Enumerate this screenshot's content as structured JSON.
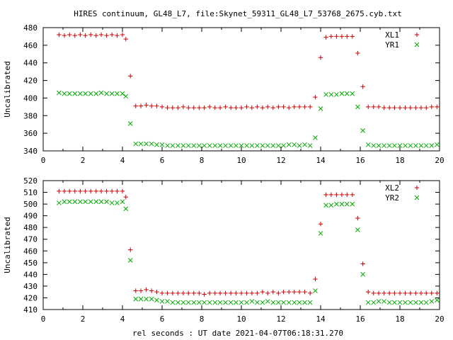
{
  "figure": {
    "title": "HIRES continuum, GL48_L7, file:Skynet_59311_GL48_L7_53768_2675.cyb.txt",
    "xlabel": "rel seconds : UT date 2021-04-07T06:18:31.270"
  },
  "colors": {
    "plus": "#cc0000",
    "cross": "#00aa00",
    "axis": "#000000"
  },
  "chart_data": [
    {
      "type": "scatter",
      "ylabel": "Uncalibrated",
      "xlim": [
        0,
        20
      ],
      "ylim": [
        340,
        480
      ],
      "xticks": [
        0,
        2,
        4,
        6,
        8,
        10,
        12,
        14,
        16,
        18,
        20
      ],
      "yticks": [
        340,
        360,
        380,
        400,
        420,
        440,
        460,
        480
      ],
      "legend_position": "top-right",
      "x": [
        0.8,
        1.07,
        1.33,
        1.6,
        1.87,
        2.13,
        2.4,
        2.67,
        2.93,
        3.2,
        3.47,
        3.73,
        4.0,
        4.17,
        4.4,
        4.67,
        4.93,
        5.2,
        5.47,
        5.73,
        6.0,
        6.27,
        6.53,
        6.8,
        7.07,
        7.33,
        7.6,
        7.87,
        8.13,
        8.4,
        8.67,
        8.93,
        9.2,
        9.47,
        9.73,
        10.0,
        10.27,
        10.53,
        10.8,
        11.07,
        11.33,
        11.6,
        11.87,
        12.13,
        12.4,
        12.67,
        12.93,
        13.2,
        13.47,
        13.73,
        14.0,
        14.27,
        14.53,
        14.8,
        15.07,
        15.33,
        15.6,
        15.87,
        16.13,
        16.4,
        16.67,
        16.93,
        17.2,
        17.47,
        17.73,
        18.0,
        18.27,
        18.53,
        18.8,
        19.07,
        19.33,
        19.6,
        19.87
      ],
      "series": [
        {
          "name": "XL1",
          "marker": "plus",
          "values": [
            472,
            471,
            472,
            471,
            472,
            471,
            472,
            471,
            472,
            471,
            472,
            471,
            472,
            467,
            425,
            391,
            391,
            392,
            391,
            391,
            390,
            389,
            389,
            389,
            390,
            389,
            389,
            389,
            389,
            390,
            389,
            389,
            390,
            389,
            389,
            389,
            390,
            389,
            390,
            389,
            390,
            389,
            390,
            390,
            389,
            390,
            390,
            390,
            390,
            401,
            446,
            469,
            470,
            470,
            470,
            470,
            470,
            451,
            413,
            390,
            390,
            390,
            389,
            389,
            389,
            389,
            389,
            389,
            389,
            389,
            389,
            390,
            390
          ]
        },
        {
          "name": "YR1",
          "marker": "cross",
          "values": [
            406,
            405,
            405,
            405,
            405,
            405,
            405,
            405,
            406,
            405,
            405,
            405,
            405,
            402,
            371,
            348,
            348,
            348,
            348,
            347,
            347,
            346,
            346,
            346,
            346,
            346,
            346,
            346,
            346,
            346,
            346,
            346,
            346,
            346,
            346,
            346,
            346,
            346,
            346,
            346,
            346,
            346,
            346,
            346,
            347,
            347,
            346,
            347,
            346,
            355,
            388,
            404,
            404,
            404,
            405,
            405,
            405,
            390,
            363,
            347,
            346,
            346,
            346,
            346,
            346,
            346,
            346,
            346,
            346,
            346,
            346,
            346,
            347
          ]
        }
      ]
    },
    {
      "type": "scatter",
      "ylabel": "Uncalibrated",
      "xlim": [
        0,
        20
      ],
      "ylim": [
        410,
        520
      ],
      "xticks": [
        0,
        2,
        4,
        6,
        8,
        10,
        12,
        14,
        16,
        18,
        20
      ],
      "yticks": [
        410,
        420,
        430,
        440,
        450,
        460,
        470,
        480,
        490,
        500,
        510,
        520
      ],
      "legend_position": "top-right",
      "x": [
        0.8,
        1.07,
        1.33,
        1.6,
        1.87,
        2.13,
        2.4,
        2.67,
        2.93,
        3.2,
        3.47,
        3.73,
        4.0,
        4.17,
        4.4,
        4.67,
        4.93,
        5.2,
        5.47,
        5.73,
        6.0,
        6.27,
        6.53,
        6.8,
        7.07,
        7.33,
        7.6,
        7.87,
        8.13,
        8.4,
        8.67,
        8.93,
        9.2,
        9.47,
        9.73,
        10.0,
        10.27,
        10.53,
        10.8,
        11.07,
        11.33,
        11.6,
        11.87,
        12.13,
        12.4,
        12.67,
        12.93,
        13.2,
        13.47,
        13.73,
        14.0,
        14.27,
        14.53,
        14.8,
        15.07,
        15.33,
        15.6,
        15.87,
        16.13,
        16.4,
        16.67,
        16.93,
        17.2,
        17.47,
        17.73,
        18.0,
        18.27,
        18.53,
        18.8,
        19.07,
        19.33,
        19.6,
        19.87
      ],
      "series": [
        {
          "name": "XL2",
          "marker": "plus",
          "values": [
            511,
            511,
            511,
            511,
            511,
            511,
            511,
            511,
            511,
            511,
            511,
            511,
            511,
            506,
            461,
            426,
            426,
            427,
            426,
            425,
            424,
            424,
            424,
            424,
            424,
            424,
            424,
            424,
            423,
            424,
            424,
            424,
            424,
            424,
            424,
            424,
            424,
            424,
            424,
            425,
            424,
            425,
            424,
            425,
            425,
            425,
            425,
            425,
            424,
            436,
            483,
            508,
            508,
            508,
            508,
            508,
            508,
            488,
            449,
            425,
            424,
            424,
            424,
            424,
            424,
            424,
            424,
            424,
            424,
            424,
            424,
            424,
            424
          ]
        },
        {
          "name": "YR2",
          "marker": "cross",
          "values": [
            501,
            502,
            502,
            502,
            502,
            502,
            502,
            502,
            502,
            502,
            501,
            501,
            502,
            496,
            452,
            419,
            419,
            419,
            419,
            418,
            417,
            417,
            416,
            416,
            416,
            416,
            416,
            416,
            416,
            416,
            416,
            416,
            416,
            416,
            416,
            416,
            416,
            417,
            416,
            416,
            417,
            416,
            416,
            416,
            416,
            416,
            416,
            416,
            416,
            426,
            475,
            499,
            499,
            500,
            500,
            500,
            500,
            478,
            440,
            416,
            416,
            417,
            417,
            416,
            416,
            416,
            416,
            416,
            416,
            416,
            416,
            417,
            418
          ]
        }
      ]
    }
  ]
}
